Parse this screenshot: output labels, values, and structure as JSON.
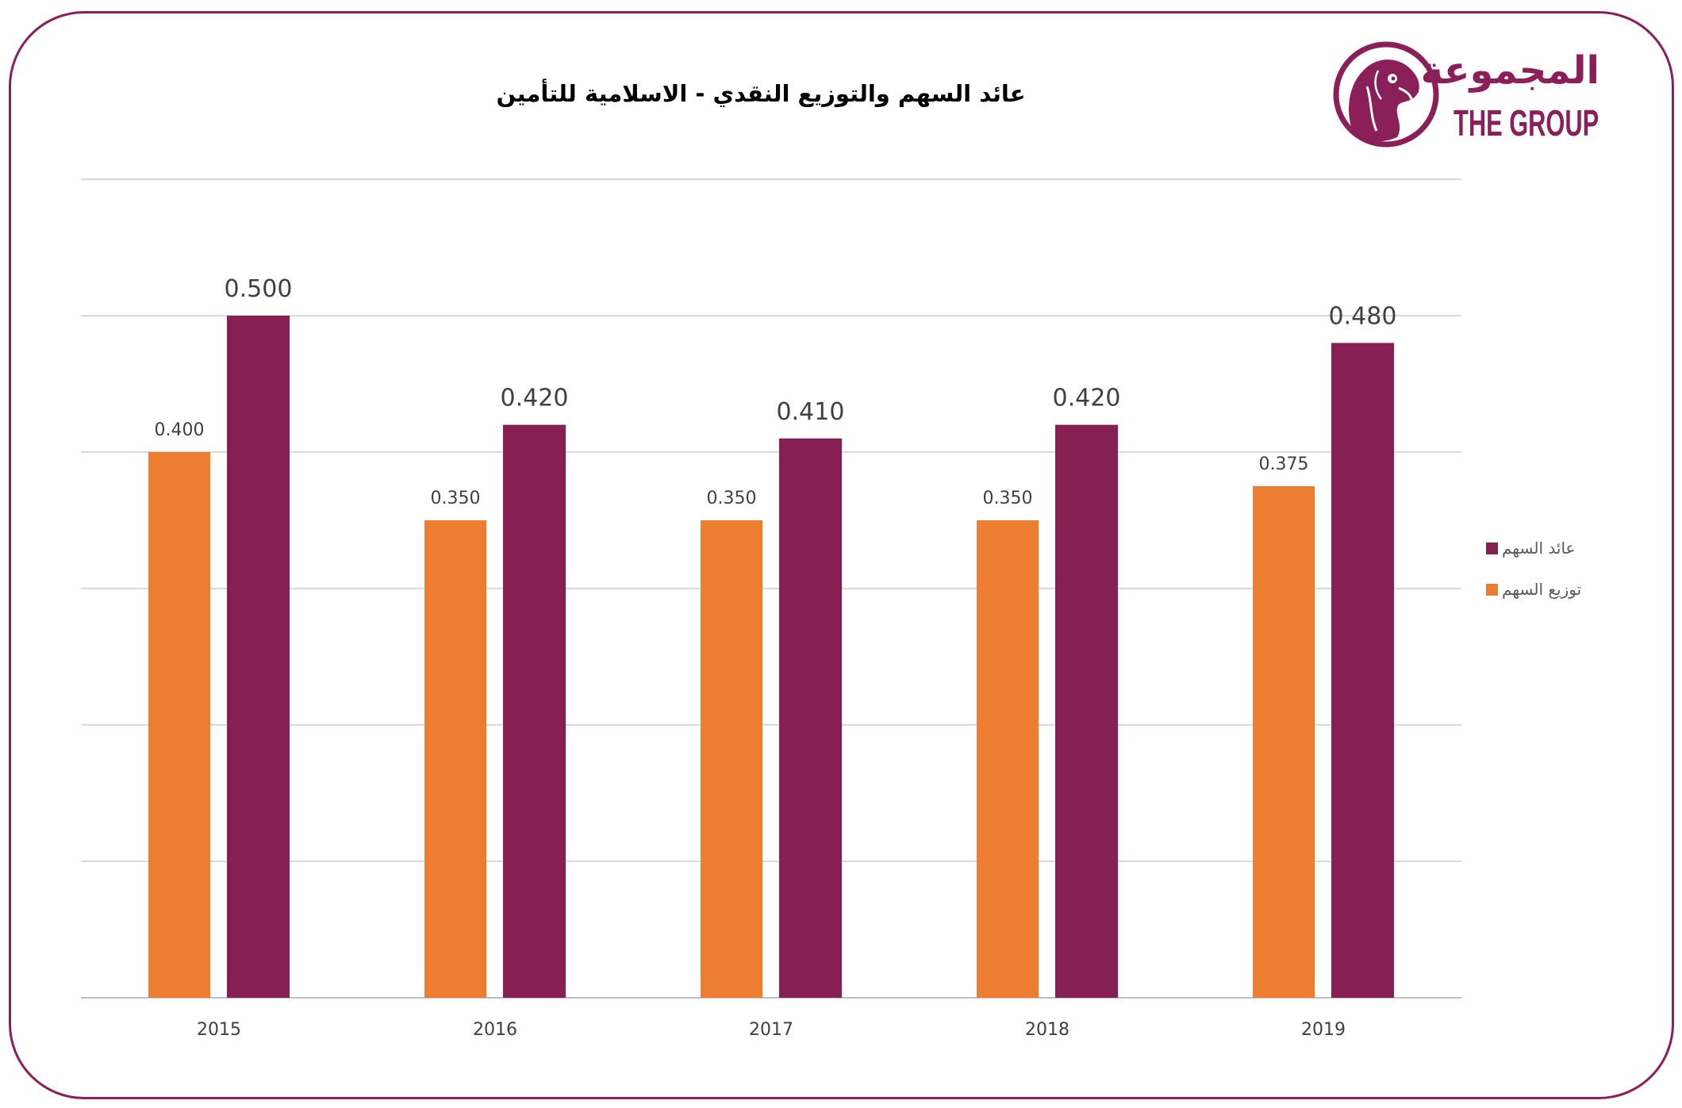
{
  "logo": {
    "arabic_text": "المجموعة",
    "english_text": "THE GROUP",
    "icon": "falcon-emblem-icon"
  },
  "colors": {
    "brand": "#8B1F5A",
    "grid": "#D9D9D9",
    "axis": "#BFBFBF",
    "label_text": "#404040",
    "legend_text": "#595959"
  },
  "chart_data": {
    "type": "bar",
    "title": "عائد السهم والتوزيع النقدي - الاسلامية للتأمين",
    "categories": [
      "2015",
      "2016",
      "2017",
      "2018",
      "2019"
    ],
    "series": [
      {
        "name": "توزيع السهم",
        "values": [
          0.4,
          0.35,
          0.35,
          0.35,
          0.375
        ],
        "color": "#ED7D31"
      },
      {
        "name": "عائد السهم",
        "values": [
          0.5,
          0.42,
          0.41,
          0.42,
          0.48
        ],
        "color": "#862052"
      }
    ],
    "ylim": [
      0,
      0.6
    ],
    "grid": true,
    "legend": "right",
    "data_labels": true
  }
}
